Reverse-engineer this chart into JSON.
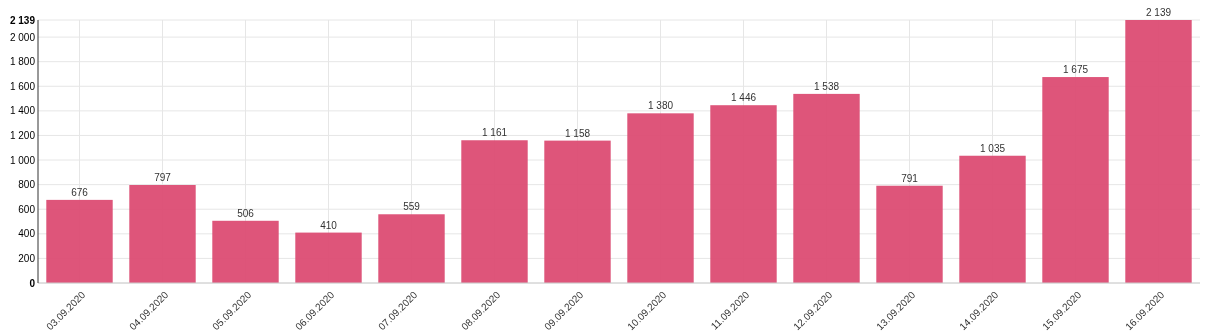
{
  "chart_data": {
    "type": "bar",
    "categories": [
      "03.09.2020",
      "04.09.2020",
      "05.09.2020",
      "06.09.2020",
      "07.09.2020",
      "08.09.2020",
      "09.09.2020",
      "10.09.2020",
      "11.09.2020",
      "12.09.2020",
      "13.09.2020",
      "14.09.2020",
      "15.09.2020",
      "16.09.2020"
    ],
    "values": [
      676,
      797,
      506,
      410,
      559,
      1161,
      1158,
      1380,
      1446,
      1538,
      791,
      1035,
      1675,
      2139
    ],
    "value_labels": [
      "676",
      "797",
      "506",
      "410",
      "559",
      "1 161",
      "1 158",
      "1 380",
      "1 446",
      "1 538",
      "791",
      "1 035",
      "1 675",
      "2 139"
    ],
    "color": "#dc4c73",
    "ylim": [
      0,
      2139
    ],
    "yticks": [
      0,
      200,
      400,
      600,
      800,
      {
        "value": 1000,
        "label": "1 000"
      },
      {
        "value": 1200,
        "label": "1 200"
      },
      {
        "value": 1400,
        "label": "1 400"
      },
      {
        "value": 1600,
        "label": "1 600"
      },
      {
        "value": 1800,
        "label": "1 800"
      },
      {
        "value": 2000,
        "label": "2 000"
      },
      {
        "value": 2139,
        "label": "2 139"
      }
    ],
    "grid": true
  }
}
